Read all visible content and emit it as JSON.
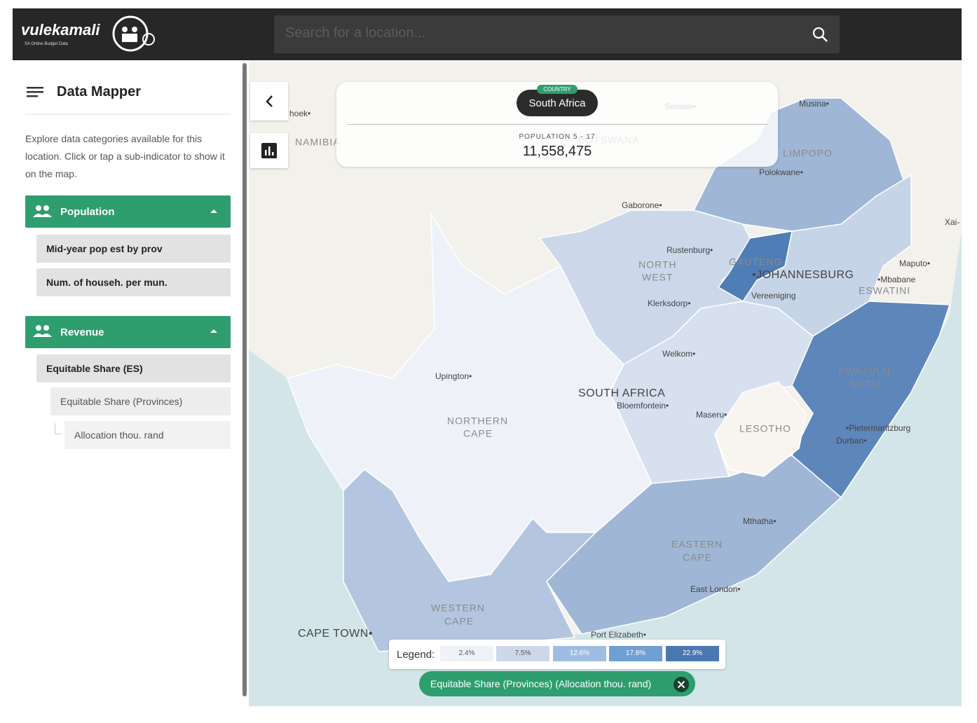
{
  "header": {
    "logo": "vulekamali",
    "logo_tagline": "SA Online Budget Data",
    "search_placeholder": "Search for a location..."
  },
  "sidebar": {
    "title": "Data Mapper",
    "description": "Explore data categories available for this location. Click or tap a sub-indicator to show it on the map.",
    "categories": [
      {
        "title": "Population",
        "items": [
          "Mid-year pop est by prov",
          "Num. of househ. per mun."
        ]
      },
      {
        "title": "Revenue",
        "items": [
          "Equitable Share (ES)"
        ],
        "subitems": [
          "Equitable Share (Provinces)"
        ],
        "subsubitems": [
          "Allocation thou. rand"
        ]
      }
    ]
  },
  "location_panel": {
    "badge": "COUNTRY",
    "name": "South Africa",
    "indicator": "POPULATION 5 - 17",
    "value": "11,558,475"
  },
  "legend": {
    "title": "Legend:",
    "items": [
      "2.4%",
      "7.5%",
      "12.6%",
      "17.8%",
      "22.9%"
    ]
  },
  "active_filter": "Equitable Share (Provinces) (Allocation thou. rand)",
  "map": {
    "labels": [
      "hoek•",
      "NAMIBIA",
      "BOTSWANA",
      "Serowe•",
      "Musina•",
      "LIMPOPO",
      "Polokwane•",
      "Gaborone•",
      "Xai-",
      "Rustenburg•",
      "NORTH",
      "WEST",
      "GAUTENG",
      "•JOHANNESBURG",
      "Maputo•",
      "•Mbabane",
      "ESWATINI",
      "Klerksdorp•",
      "Vereeniging",
      "Welkom•",
      "KWAZULU-",
      "NATAL",
      "Upington•",
      "SOUTH AFRICA",
      "Bloemfontein•",
      "Maseru•",
      "LESOTHO",
      "NORTHERN",
      "CAPE",
      "•Pietermaritzburg",
      "Durban•",
      "Mthatha•",
      "EASTERN",
      "CAPE",
      "East London•",
      "WESTERN",
      "CAPE",
      "CAPE TOWN•",
      "Port Elizabeth•"
    ]
  }
}
